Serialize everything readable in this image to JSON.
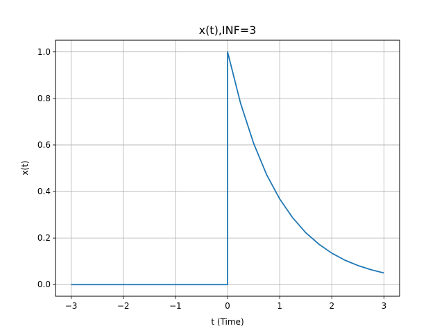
{
  "chart_data": {
    "type": "line",
    "title": "x(t),INF=3",
    "xlabel": "t (Time)",
    "ylabel": "x(t)",
    "xlim": [
      -3.3,
      3.3
    ],
    "ylim": [
      -0.05,
      1.05
    ],
    "xticks": [
      -3,
      -2,
      -1,
      0,
      1,
      2,
      3
    ],
    "xtick_labels": [
      "−3",
      "−2",
      "−1",
      "0",
      "1",
      "2",
      "3"
    ],
    "yticks": [
      0.0,
      0.2,
      0.4,
      0.6,
      0.8,
      1.0
    ],
    "ytick_labels": [
      "0.0",
      "0.2",
      "0.4",
      "0.6",
      "0.8",
      "1.0"
    ],
    "grid": true,
    "series": [
      {
        "color": "#1f77b4",
        "x": [
          -3,
          -2,
          -1,
          0,
          0,
          0.25,
          0.5,
          0.75,
          1,
          1.25,
          1.5,
          1.75,
          2,
          2.25,
          2.5,
          2.75,
          3
        ],
        "y": [
          0,
          0,
          0,
          0,
          1,
          0.779,
          0.607,
          0.472,
          0.368,
          0.287,
          0.223,
          0.174,
          0.135,
          0.105,
          0.082,
          0.064,
          0.05
        ]
      }
    ]
  }
}
